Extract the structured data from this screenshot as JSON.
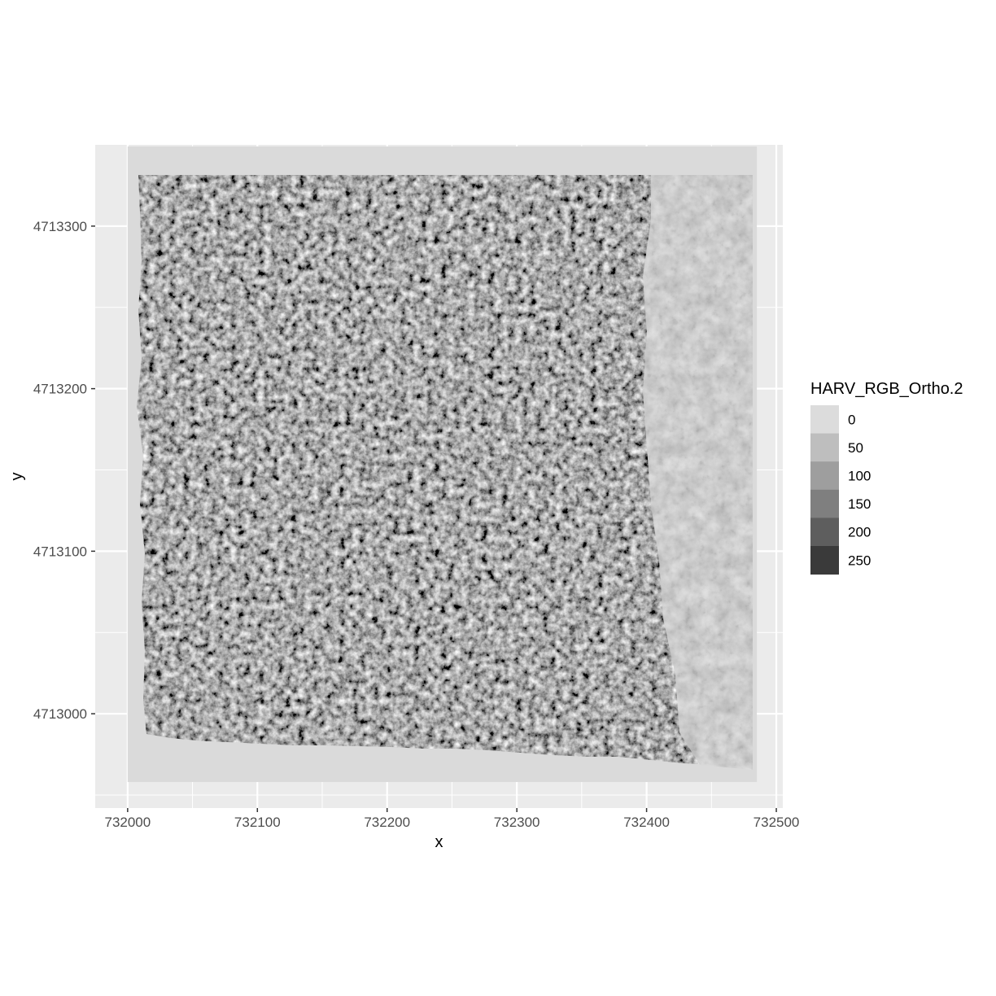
{
  "chart_data": {
    "type": "heatmap",
    "title": "",
    "xlabel": "x",
    "ylabel": "y",
    "xlim": [
      731975,
      732505
    ],
    "ylim": [
      4712942,
      4713350
    ],
    "x_ticks": [
      732000,
      732100,
      732200,
      732300,
      732400,
      732500
    ],
    "y_ticks": [
      4713000,
      4713100,
      4713200,
      4713300
    ],
    "grid": true,
    "raster_extent": {
      "xmin": 732000,
      "xmax": 732485,
      "ymin": 4712958,
      "ymax": 4713349
    },
    "no_data_fill": "#dadada",
    "legend": {
      "title": "HARV_RGB_Ortho.2",
      "placement": "right",
      "entries": [
        {
          "label": "0",
          "color": "#dcdcdc"
        },
        {
          "label": "50",
          "color": "#bebebe"
        },
        {
          "label": "100",
          "color": "#9e9e9e"
        },
        {
          "label": "150",
          "color": "#7f7f7f"
        },
        {
          "label": "200",
          "color": "#5e5e5e"
        },
        {
          "label": "250",
          "color": "#3a3a3a"
        }
      ]
    },
    "colors": {
      "panel": "#ebebeb",
      "grid": "#ffffff",
      "axis_text": "#4d4d4d"
    }
  }
}
